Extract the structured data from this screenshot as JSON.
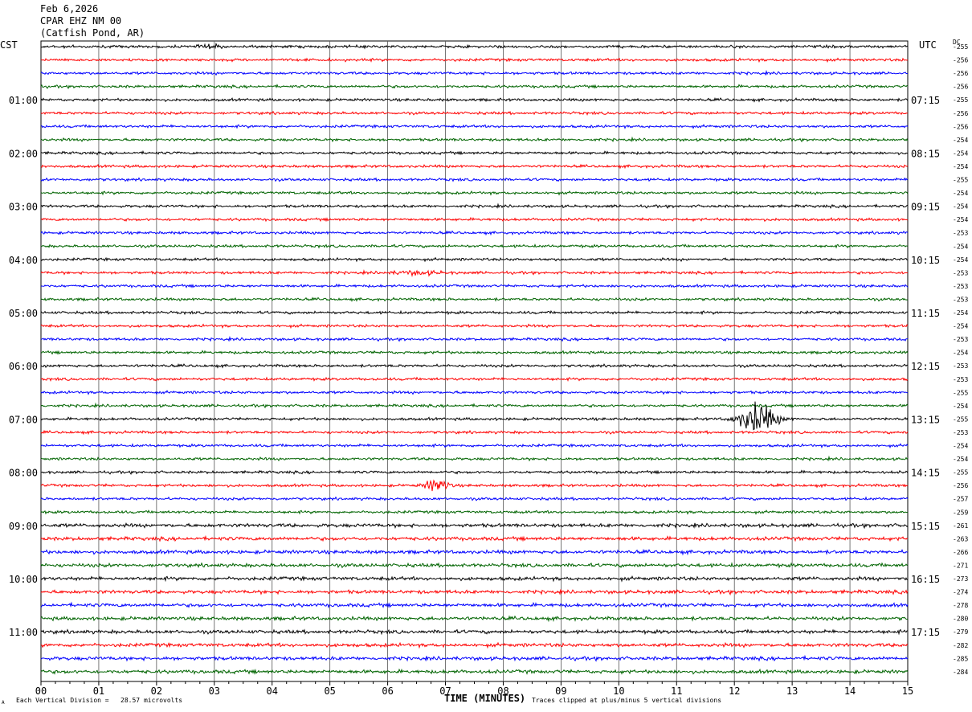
{
  "header": {
    "date": "Feb 6,2026",
    "station": "CPAR EHZ NM 00",
    "location": "(Catfish Pond, AR)"
  },
  "left_tz": "CST",
  "right_tz": "UTC",
  "dc_label": "DC",
  "footer": {
    "scale_note": "Each Vertical Division =   28.57 microvolts",
    "clip_note": "Traces clipped at plus/minus 5 vertical divisions",
    "corner_mark": "A"
  },
  "chart_data": {
    "type": "line",
    "xlabel": "TIME (MINUTES)",
    "x_ticks": [
      "00",
      "01",
      "02",
      "03",
      "04",
      "05",
      "06",
      "07",
      "08",
      "09",
      "10",
      "11",
      "12",
      "13",
      "14",
      "15"
    ],
    "xlim": [
      0,
      15
    ],
    "trace_colors": [
      "#000000",
      "#ff0000",
      "#0000ff",
      "#006400"
    ],
    "left_hour_labels": [
      "01:00",
      "02:00",
      "03:00",
      "04:00",
      "05:00",
      "06:00",
      "07:00",
      "08:00",
      "09:00",
      "10:00",
      "11:00"
    ],
    "right_hour_labels": [
      "07:15",
      "08:15",
      "09:15",
      "10:15",
      "11:15",
      "12:15",
      "13:15",
      "14:15",
      "15:15",
      "16:15",
      "17:15"
    ],
    "hour_label_first_trace": [
      4,
      8,
      12,
      16,
      20,
      24,
      28,
      32,
      36,
      40,
      44
    ],
    "dc_offsets": [
      -255,
      -256,
      -256,
      -256,
      -255,
      -256,
      -256,
      -254,
      -254,
      -254,
      -255,
      -254,
      -254,
      -254,
      -253,
      -254,
      -254,
      -253,
      -253,
      -253,
      -254,
      -254,
      -253,
      -254,
      -253,
      -253,
      -255,
      -254,
      -255,
      -253,
      -254,
      -254,
      -255,
      -256,
      -257,
      -259,
      -261,
      -263,
      -266,
      -271,
      -273,
      -274,
      -278,
      -280,
      -279,
      -282,
      -285,
      -284
    ],
    "events": [
      {
        "trace": 28,
        "minute": 12.4,
        "duration_min": 0.9,
        "amplitude_div": 5
      },
      {
        "trace": 33,
        "minute": 6.85,
        "duration_min": 0.55,
        "amplitude_div": 2.2
      },
      {
        "trace": 0,
        "minute": 2.9,
        "duration_min": 0.5,
        "amplitude_div": 0.6
      },
      {
        "trace": 17,
        "minute": 6.5,
        "duration_min": 1.3,
        "amplitude_div": 0.5
      }
    ]
  }
}
